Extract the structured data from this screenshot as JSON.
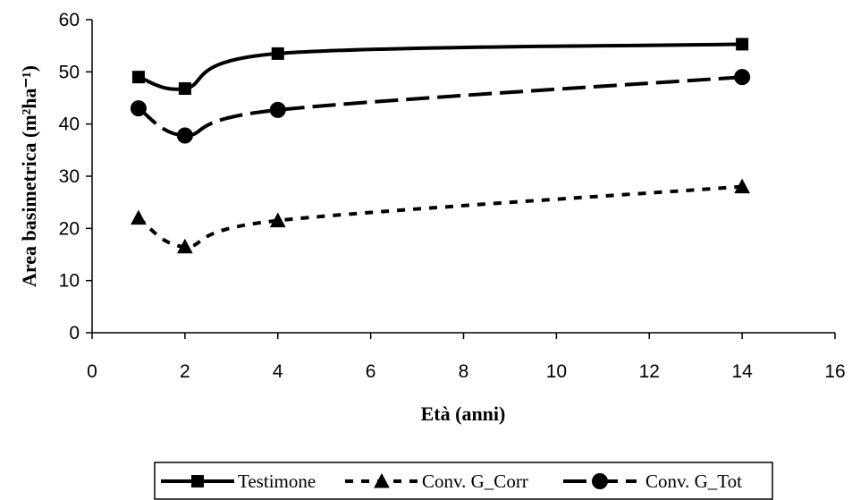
{
  "chart_data": {
    "type": "line",
    "xlabel": "Età (anni)",
    "ylabel": "Area basimetrica (m²ha⁻¹)",
    "xlim": [
      0,
      16
    ],
    "ylim": [
      0,
      60
    ],
    "xticks": [
      "0",
      "2",
      "4",
      "6",
      "8",
      "10",
      "12",
      "14",
      "16"
    ],
    "yticks": [
      "0",
      "10",
      "20",
      "30",
      "40",
      "50",
      "60"
    ],
    "grid": false,
    "legend_position": "bottom",
    "series": [
      {
        "name": "Testimone",
        "marker": "square",
        "line_style": "solid",
        "color": "#000000",
        "x": [
          1,
          2,
          4,
          14
        ],
        "y": [
          49,
          46.8,
          53.5,
          55.3
        ]
      },
      {
        "name": "Conv. G_Corr",
        "marker": "triangle",
        "line_style": "dotted",
        "color": "#000000",
        "x": [
          1,
          2,
          4,
          14
        ],
        "y": [
          22,
          16.5,
          21.5,
          28
        ]
      },
      {
        "name": "Conv. G_Tot",
        "marker": "circle",
        "line_style": "dashed",
        "color": "#000000",
        "x": [
          1,
          2,
          4,
          14
        ],
        "y": [
          43,
          37.8,
          42.7,
          49
        ]
      }
    ]
  }
}
